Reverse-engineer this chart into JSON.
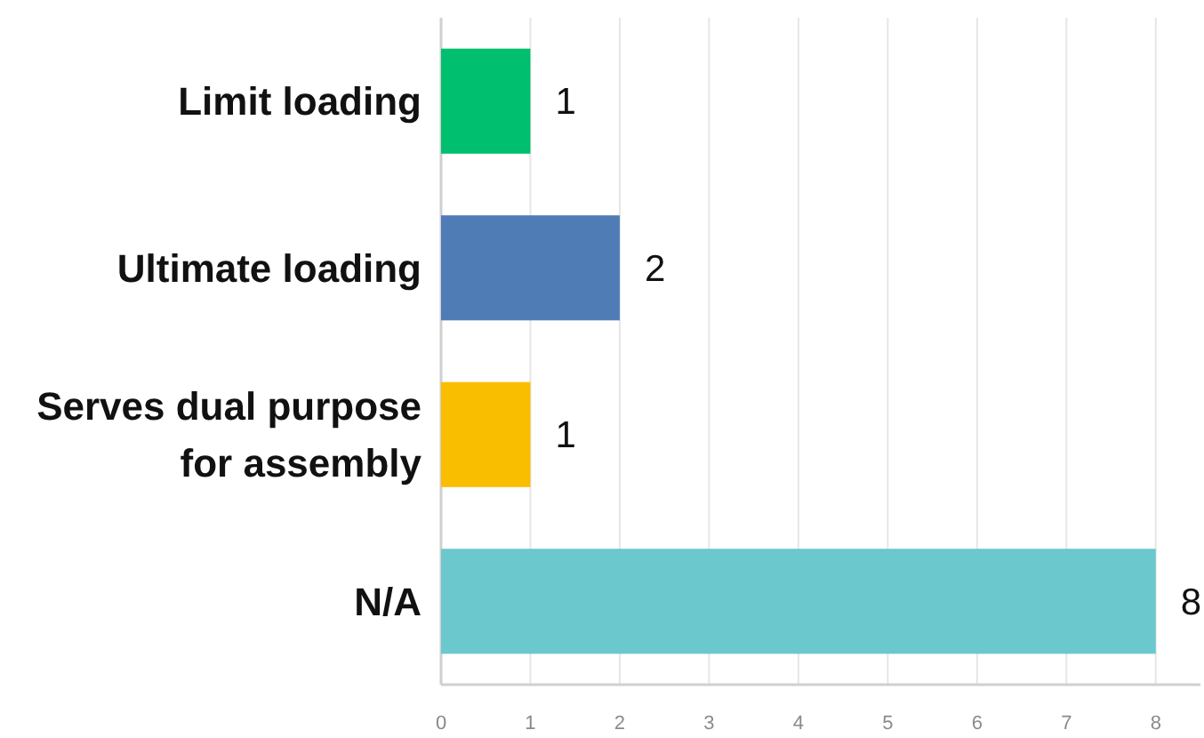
{
  "chart_data": {
    "type": "bar",
    "orientation": "horizontal",
    "categories": [
      "Limit loading",
      "Ultimate loading",
      "Serves dual purpose for assembly",
      "N/A"
    ],
    "values": [
      1,
      2,
      1,
      8
    ],
    "colors": [
      "#00bf6f",
      "#507cb6",
      "#f9be00",
      "#6bc8cd"
    ],
    "xlim": [
      0,
      8.5
    ],
    "xticks": [
      0,
      1,
      2,
      3,
      4,
      5,
      6,
      7,
      8
    ],
    "grid": "x",
    "data_labels": true
  }
}
